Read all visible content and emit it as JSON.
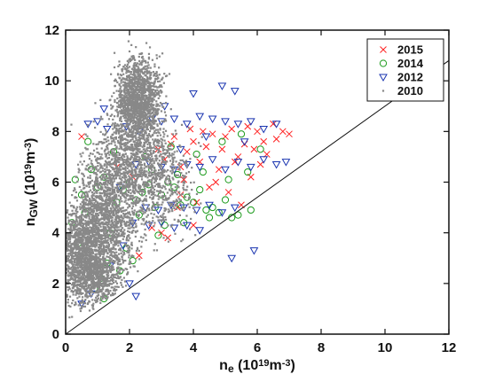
{
  "chart_data": {
    "type": "scatter",
    "xlabel": {
      "base": "n",
      "sub": "e",
      "unit_prefix": " (10",
      "exp": "19",
      "unit_mid": "m",
      "unit_exp": "-3",
      "unit_suffix": ")"
    },
    "ylabel": {
      "base": "n",
      "sub": "GW",
      "unit_prefix": " (10",
      "exp": "19",
      "unit_mid": "m",
      "unit_exp": "-3",
      "unit_suffix": ")"
    },
    "xlim": [
      0,
      12
    ],
    "ylim": [
      0,
      12
    ],
    "xticks": [
      0,
      2,
      4,
      6,
      8,
      10,
      12
    ],
    "yticks": [
      0,
      2,
      4,
      6,
      8,
      10,
      12
    ],
    "reference_line": {
      "x": [
        0,
        12
      ],
      "y": [
        0,
        10.8
      ]
    },
    "legend_position": "top-right",
    "series": [
      {
        "name": "2015",
        "marker": "x",
        "color": "#ff2020",
        "points": [
          [
            2.3,
            3.1
          ],
          [
            2.7,
            4.2
          ],
          [
            3.0,
            4.0
          ],
          [
            3.2,
            3.8
          ],
          [
            3.5,
            5.0
          ],
          [
            3.6,
            6.6
          ],
          [
            3.8,
            7.2
          ],
          [
            4.0,
            7.6
          ],
          [
            4.2,
            6.8
          ],
          [
            4.4,
            7.4
          ],
          [
            4.6,
            7.9
          ],
          [
            4.8,
            6.5
          ],
          [
            5.0,
            7.8
          ],
          [
            5.2,
            8.1
          ],
          [
            5.4,
            7.0
          ],
          [
            5.6,
            7.5
          ],
          [
            5.8,
            6.2
          ],
          [
            6.0,
            8.0
          ],
          [
            6.2,
            7.6
          ],
          [
            6.5,
            8.3
          ],
          [
            6.8,
            8.0
          ],
          [
            7.0,
            7.9
          ],
          [
            3.4,
            7.8
          ],
          [
            3.9,
            8.1
          ],
          [
            4.5,
            5.8
          ],
          [
            5.1,
            5.6
          ],
          [
            5.5,
            5.1
          ],
          [
            4.1,
            5.2
          ],
          [
            2.9,
            7.3
          ],
          [
            3.1,
            6.9
          ],
          [
            3.7,
            6.1
          ],
          [
            4.3,
            8.0
          ],
          [
            4.9,
            7.3
          ],
          [
            5.3,
            6.8
          ],
          [
            5.9,
            7.3
          ],
          [
            6.3,
            7.1
          ],
          [
            6.6,
            7.7
          ],
          [
            4.7,
            6.0
          ],
          [
            3.3,
            7.5
          ],
          [
            5.7,
            8.2
          ],
          [
            2.1,
            6.2
          ],
          [
            1.6,
            6.6
          ],
          [
            0.5,
            7.8
          ],
          [
            4.0,
            4.3
          ],
          [
            3.6,
            5.5
          ],
          [
            6.1,
            6.7
          ]
        ]
      },
      {
        "name": "2014",
        "marker": "o",
        "color": "#1a9a1a",
        "points": [
          [
            0.3,
            6.1
          ],
          [
            0.5,
            5.5
          ],
          [
            0.6,
            4.8
          ],
          [
            0.8,
            6.5
          ],
          [
            1.0,
            5.8
          ],
          [
            1.2,
            6.2
          ],
          [
            1.4,
            4.0
          ],
          [
            1.6,
            5.2
          ],
          [
            1.8,
            5.7
          ],
          [
            2.0,
            6.0
          ],
          [
            2.2,
            5.3
          ],
          [
            2.4,
            5.6
          ],
          [
            2.6,
            5.9
          ],
          [
            2.8,
            5.0
          ],
          [
            3.0,
            5.5
          ],
          [
            3.2,
            6.0
          ],
          [
            3.4,
            5.8
          ],
          [
            3.6,
            5.1
          ],
          [
            3.8,
            5.4
          ],
          [
            4.0,
            5.2
          ],
          [
            4.2,
            5.7
          ],
          [
            4.4,
            4.9
          ],
          [
            4.6,
            5.0
          ],
          [
            4.8,
            4.8
          ],
          [
            5.0,
            5.3
          ],
          [
            5.4,
            4.7
          ],
          [
            5.8,
            4.9
          ],
          [
            0.7,
            7.6
          ],
          [
            1.5,
            7.2
          ],
          [
            2.5,
            7.0
          ],
          [
            3.3,
            7.4
          ],
          [
            4.1,
            7.1
          ],
          [
            4.9,
            7.6
          ],
          [
            5.5,
            7.9
          ],
          [
            6.1,
            7.3
          ],
          [
            1.1,
            2.2
          ],
          [
            1.3,
            2.8
          ],
          [
            0.9,
            1.8
          ],
          [
            1.7,
            2.5
          ],
          [
            3.1,
            4.3
          ],
          [
            2.9,
            3.9
          ],
          [
            3.7,
            4.4
          ],
          [
            4.5,
            4.6
          ],
          [
            5.2,
            4.6
          ],
          [
            0.4,
            3.6
          ],
          [
            1.9,
            3.4
          ],
          [
            2.3,
            4.7
          ],
          [
            2.7,
            6.5
          ],
          [
            3.5,
            6.3
          ],
          [
            4.3,
            6.4
          ],
          [
            5.1,
            6.1
          ],
          [
            5.7,
            6.4
          ],
          [
            0.2,
            4.4
          ],
          [
            1.2,
            1.4
          ],
          [
            2.1,
            2.9
          ]
        ]
      },
      {
        "name": "2012",
        "marker": "triangle-down",
        "color": "#1a35b0",
        "points": [
          [
            0.7,
            8.3
          ],
          [
            1.0,
            8.4
          ],
          [
            1.3,
            8.1
          ],
          [
            1.9,
            8.2
          ],
          [
            2.3,
            8.0
          ],
          [
            2.7,
            8.5
          ],
          [
            3.0,
            8.4
          ],
          [
            3.4,
            8.5
          ],
          [
            3.8,
            8.3
          ],
          [
            4.2,
            8.6
          ],
          [
            4.6,
            8.5
          ],
          [
            5.0,
            8.4
          ],
          [
            5.4,
            8.3
          ],
          [
            5.8,
            8.4
          ],
          [
            6.2,
            8.1
          ],
          [
            6.6,
            8.3
          ],
          [
            2.2,
            6.7
          ],
          [
            2.6,
            6.8
          ],
          [
            3.0,
            6.6
          ],
          [
            3.4,
            6.5
          ],
          [
            3.8,
            6.7
          ],
          [
            4.2,
            6.6
          ],
          [
            4.6,
            6.9
          ],
          [
            5.0,
            6.5
          ],
          [
            5.4,
            6.8
          ],
          [
            5.8,
            6.6
          ],
          [
            6.2,
            6.9
          ],
          [
            6.6,
            6.7
          ],
          [
            2.5,
            5.0
          ],
          [
            2.9,
            4.9
          ],
          [
            3.3,
            5.1
          ],
          [
            3.7,
            5.0
          ],
          [
            4.1,
            4.9
          ],
          [
            4.5,
            5.1
          ],
          [
            4.9,
            4.8
          ],
          [
            5.3,
            5.0
          ],
          [
            2.6,
            4.3
          ],
          [
            3.0,
            4.4
          ],
          [
            3.4,
            4.2
          ],
          [
            3.8,
            4.3
          ],
          [
            4.2,
            4.1
          ],
          [
            5.9,
            3.3
          ],
          [
            5.2,
            3.0
          ],
          [
            2.0,
            2.0
          ],
          [
            2.2,
            1.5
          ],
          [
            0.5,
            1.2
          ],
          [
            0.8,
            1.6
          ],
          [
            1.4,
            2.7
          ],
          [
            1.8,
            3.5
          ],
          [
            3.1,
            9.0
          ],
          [
            4.0,
            9.5
          ],
          [
            4.9,
            9.8
          ],
          [
            5.3,
            9.6
          ],
          [
            1.7,
            5.8
          ],
          [
            2.1,
            4.4
          ],
          [
            3.6,
            7.3
          ],
          [
            4.4,
            7.8
          ],
          [
            5.6,
            7.6
          ],
          [
            6.9,
            6.8
          ],
          [
            1.2,
            8.9
          ]
        ]
      },
      {
        "name": "2010",
        "marker": "dot",
        "color": "#888888",
        "points": []
      }
    ]
  }
}
